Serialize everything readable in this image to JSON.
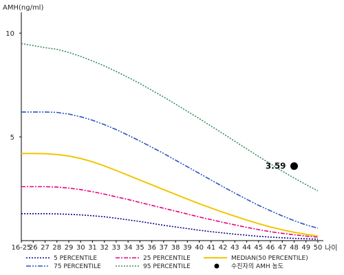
{
  "chart_data": {
    "type": "line",
    "ylabel": "AMH(ng/ml)",
    "xlabel": "나이",
    "ylim": [
      0,
      11
    ],
    "yticks": [
      5,
      10
    ],
    "categories": [
      "16-25",
      "26",
      "27",
      "28",
      "29",
      "30",
      "31",
      "32",
      "33",
      "34",
      "35",
      "36",
      "37",
      "38",
      "39",
      "40",
      "41",
      "42",
      "43",
      "44",
      "45",
      "46",
      "47",
      "48",
      "49",
      "50"
    ],
    "series": [
      {
        "name": "5 PERCENTILE",
        "color": "#00008b",
        "dash": "2,2",
        "values": [
          1.3,
          1.3,
          1.3,
          1.29,
          1.27,
          1.24,
          1.2,
          1.15,
          1.08,
          1.0,
          0.92,
          0.83,
          0.74,
          0.66,
          0.58,
          0.5,
          0.43,
          0.37,
          0.31,
          0.26,
          0.21,
          0.17,
          0.14,
          0.11,
          0.09,
          0.07
        ]
      },
      {
        "name": "25 PERCENTILE",
        "color": "#e6007e",
        "dash": "6,2,2,2",
        "values": [
          2.6,
          2.6,
          2.6,
          2.58,
          2.53,
          2.46,
          2.36,
          2.24,
          2.11,
          1.98,
          1.84,
          1.7,
          1.56,
          1.42,
          1.28,
          1.14,
          1.01,
          0.88,
          0.76,
          0.64,
          0.53,
          0.43,
          0.35,
          0.28,
          0.22,
          0.17
        ]
      },
      {
        "name": "MEDIAN(50 PERCENTILE)",
        "color": "#f2c500",
        "dash": "",
        "values": [
          4.2,
          4.2,
          4.19,
          4.15,
          4.08,
          3.96,
          3.8,
          3.6,
          3.38,
          3.15,
          2.92,
          2.69,
          2.46,
          2.23,
          2.0,
          1.78,
          1.57,
          1.37,
          1.18,
          0.99,
          0.82,
          0.66,
          0.52,
          0.4,
          0.3,
          0.22
        ]
      },
      {
        "name": "75 PERCENTILE",
        "color": "#2a52be",
        "dash": "7,2,2,2,2,2",
        "values": [
          6.2,
          6.2,
          6.2,
          6.18,
          6.1,
          5.97,
          5.8,
          5.59,
          5.35,
          5.08,
          4.8,
          4.5,
          4.2,
          3.88,
          3.56,
          3.24,
          2.92,
          2.6,
          2.29,
          1.99,
          1.7,
          1.44,
          1.19,
          0.96,
          0.76,
          0.6
        ]
      },
      {
        "name": "95 PERCENTILE",
        "color": "#2e8b57",
        "dash": "2,2",
        "values": [
          9.5,
          9.4,
          9.3,
          9.22,
          9.07,
          8.88,
          8.66,
          8.42,
          8.15,
          7.87,
          7.57,
          7.25,
          6.92,
          6.58,
          6.23,
          5.88,
          5.52,
          5.16,
          4.79,
          4.42,
          4.06,
          3.7,
          3.35,
          3.02,
          2.7,
          2.4
        ]
      }
    ],
    "point": {
      "label": "수진자의 AMH 농도",
      "x": "48",
      "y": 3.59,
      "value_label": "3.59"
    },
    "legend": [
      {
        "text": "5 PERCENTILE",
        "series": 0
      },
      {
        "text": "25 PERCENTILE",
        "series": 1
      },
      {
        "text": "MEDIAN(50 PERCENTILE)",
        "series": 2
      },
      {
        "text": "75 PERCENTILE",
        "series": 3
      },
      {
        "text": "95 PERCENTILE",
        "series": 4
      },
      {
        "text": "수진자의 AMH 농도",
        "series": "point"
      }
    ],
    "legend_position": "bottom",
    "grid": false
  }
}
